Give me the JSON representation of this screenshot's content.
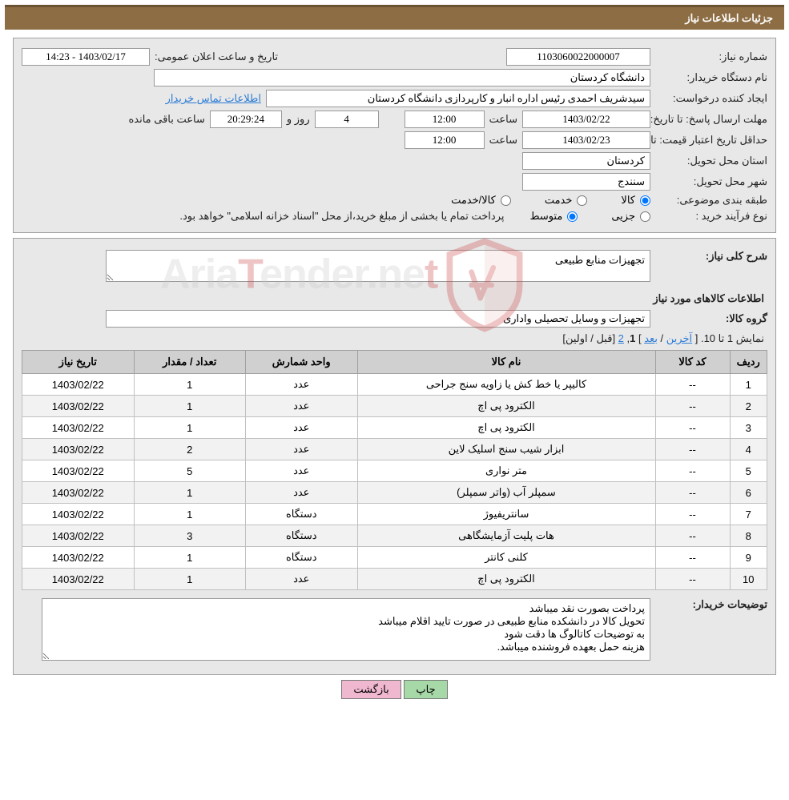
{
  "header": {
    "title": "جزئیات اطلاعات نیاز"
  },
  "info": {
    "need_number_label": "شماره نیاز:",
    "need_number": "1103060022000007",
    "announce_label": "تاریخ و ساعت اعلان عمومی:",
    "announce_value": "1403/02/17 - 14:23",
    "buyer_org_label": "نام دستگاه خریدار:",
    "buyer_org": "دانشگاه کردستان",
    "requester_label": "ایجاد کننده درخواست:",
    "requester": "سیدشریف احمدی رئیس اداره انبار و کارپردازی دانشگاه کردستان",
    "contact_link": "اطلاعات تماس خریدار",
    "deadline_label": "مهلت ارسال پاسخ:",
    "to_date_label": "تا تاریخ:",
    "deadline_date": "1403/02/22",
    "time_label": "ساعت",
    "deadline_time": "12:00",
    "days_and_label": "روز و",
    "deadline_days": "4",
    "countdown": "20:29:24",
    "remaining_label": "ساعت باقی مانده",
    "validity_label": "حداقل تاریخ اعتبار قیمت:",
    "validity_date": "1403/02/23",
    "validity_time": "12:00",
    "province_label": "استان محل تحویل:",
    "province": "کردستان",
    "city_label": "شهر محل تحویل:",
    "city": "سنندج",
    "category_label": "طبقه بندی موضوعی:",
    "cat_goods": "کالا",
    "cat_service": "خدمت",
    "cat_goods_service": "کالا/خدمت",
    "process_label": "نوع فرآیند خرید :",
    "proc_partial": "جزیی",
    "proc_medium": "متوسط",
    "process_note": "پرداخت تمام یا بخشی از مبلغ خرید،از محل \"اسناد خزانه اسلامی\" خواهد بود."
  },
  "need": {
    "summary_label": "شرح کلی نیاز:",
    "summary": "تجهیزات منابع طبیعی",
    "goods_section": "اطلاعات کالاهای مورد نیاز",
    "group_label": "گروه کالا:",
    "group": "تجهیزات و وسایل تحصیلی واداری"
  },
  "pager": {
    "text_prefix": "نمایش 1 تا 10. [ ",
    "last": "آخرین",
    "sep1": " / ",
    "next": "بعد",
    "sep2": " ] ",
    "current": "1",
    "comma": ", ",
    "page2": "2",
    "suffix": " [قبل / اولین]"
  },
  "table": {
    "columns": [
      "ردیف",
      "کد کالا",
      "نام کالا",
      "واحد شمارش",
      "تعداد / مقدار",
      "تاریخ نیاز"
    ],
    "col_widths": [
      "5%",
      "10%",
      "40%",
      "15%",
      "15%",
      "15%"
    ],
    "rows": [
      [
        "1",
        "--",
        "کالیپر یا خط کش یا زاویه سنج جراحی",
        "عدد",
        "1",
        "1403/02/22"
      ],
      [
        "2",
        "--",
        "الکترود پی اچ",
        "عدد",
        "1",
        "1403/02/22"
      ],
      [
        "3",
        "--",
        "الکترود پی اچ",
        "عدد",
        "1",
        "1403/02/22"
      ],
      [
        "4",
        "--",
        "ابزار شیب سنج اسلیک لاین",
        "عدد",
        "2",
        "1403/02/22"
      ],
      [
        "5",
        "--",
        "متر نواری",
        "عدد",
        "5",
        "1403/02/22"
      ],
      [
        "6",
        "--",
        "سمپلر آب (واتر سمپلر)",
        "عدد",
        "1",
        "1403/02/22"
      ],
      [
        "7",
        "--",
        "سانتریفیوژ",
        "دستگاه",
        "1",
        "1403/02/22"
      ],
      [
        "8",
        "--",
        "هات پلیت آزمایشگاهی",
        "دستگاه",
        "3",
        "1403/02/22"
      ],
      [
        "9",
        "--",
        "کلنی کانتر",
        "دستگاه",
        "1",
        "1403/02/22"
      ],
      [
        "10",
        "--",
        "الکترود پی اچ",
        "عدد",
        "1",
        "1403/02/22"
      ]
    ]
  },
  "notes": {
    "label": "توضیحات خریدار:",
    "text": "پرداخت بصورت نقد میباشد\nتحویل کالا در دانشکده منابع طبیعی در صورت تایید اقلام میباشد\nبه توضیحات کاتالوگ ها دقت شود\nهزینه حمل بعهده فروشنده میباشد."
  },
  "buttons": {
    "print": "چاپ",
    "back": "بازگشت"
  },
  "watermark": {
    "part1": "Aria",
    "part2": "T",
    "part3": "ender.ne",
    "part4": "t"
  },
  "colors": {
    "header_bg": "#8d6d43",
    "panel_bg": "#e8e8e8",
    "border": "#a0a0a0",
    "link": "#2b7bd6",
    "th_bg": "#d0d0d0"
  }
}
